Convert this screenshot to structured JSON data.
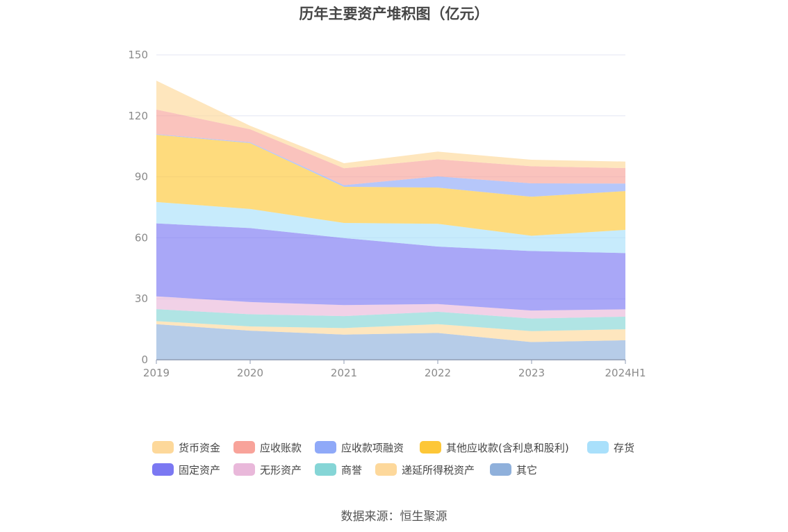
{
  "chart_data": {
    "type": "area",
    "stacked": true,
    "title": "历年主要资产堆积图（亿元）",
    "x": [
      "2019",
      "2020",
      "2021",
      "2022",
      "2023",
      "2024H1"
    ],
    "ylim": [
      0,
      150
    ],
    "yticks": [
      0,
      30,
      60,
      90,
      120,
      150
    ],
    "grid": true,
    "legend_position": "bottom",
    "series": [
      {
        "name": "其它",
        "color": "#8fb0db",
        "values": [
          17.5,
          14.3,
          12.4,
          13.2,
          8.7,
          9.6
        ]
      },
      {
        "name": "递延所得税资产",
        "color": "#fdd89b",
        "values": [
          1.5,
          2.1,
          3.2,
          4.3,
          5.4,
          5.4
        ]
      },
      {
        "name": "商誉",
        "color": "#85d5d6",
        "values": [
          5.9,
          6.0,
          5.9,
          6.1,
          6.2,
          6.2
        ]
      },
      {
        "name": "无形资产",
        "color": "#e9b8da",
        "values": [
          6.3,
          6.0,
          5.4,
          3.8,
          3.9,
          3.6
        ]
      },
      {
        "name": "固定资产",
        "color": "#7b78f2",
        "values": [
          35.9,
          36.4,
          33.0,
          28.3,
          29.3,
          27.7
        ]
      },
      {
        "name": "存货",
        "color": "#a9e0fb",
        "values": [
          10.5,
          9.4,
          7.4,
          11.2,
          7.5,
          11.4
        ]
      },
      {
        "name": "其他应收款(含利息和股利)",
        "color": "#fdc738",
        "values": [
          33.1,
          32.4,
          17.8,
          17.8,
          19.2,
          19.1
        ]
      },
      {
        "name": "应收款项融资",
        "color": "#8fa9f8",
        "values": [
          0.3,
          0.4,
          0.8,
          5.5,
          6.6,
          3.7
        ]
      },
      {
        "name": "应收账款",
        "color": "#f8a39a",
        "values": [
          12.1,
          6.4,
          8.3,
          8.4,
          8.4,
          7.6
        ]
      },
      {
        "name": "货币资金",
        "color": "#fdd89a",
        "values": [
          14.2,
          1.7,
          2.5,
          3.8,
          3.2,
          3.2
        ]
      }
    ],
    "legend_order": [
      "货币资金",
      "应收账款",
      "应收款项融资",
      "其他应收款(含利息和股利)",
      "存货",
      "固定资产",
      "无形资产",
      "商誉",
      "递延所得税资产",
      "其它"
    ]
  },
  "source": "数据来源：恒生聚源"
}
